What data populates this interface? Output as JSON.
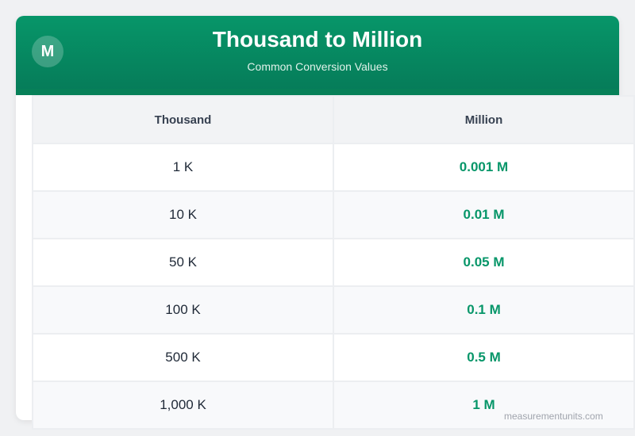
{
  "header": {
    "logo": "M",
    "title": "Thousand to Million",
    "subtitle": "Common Conversion Values"
  },
  "table": {
    "columns": [
      "Thousand",
      "Million"
    ],
    "rows": [
      [
        "1 K",
        "0.001 M"
      ],
      [
        "10 K",
        "0.01 M"
      ],
      [
        "50 K",
        "0.05 M"
      ],
      [
        "100 K",
        "0.1 M"
      ],
      [
        "500 K",
        "0.5 M"
      ],
      [
        "1,000 K",
        "1 M"
      ]
    ]
  },
  "watermark": "measurementunits.com",
  "colors": {
    "accent": "#079669"
  }
}
